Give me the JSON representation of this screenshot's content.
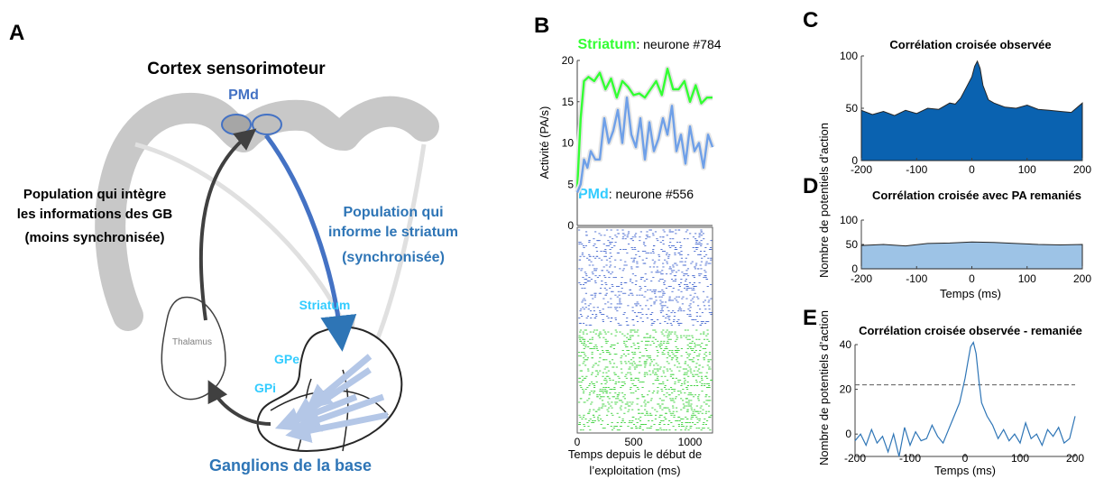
{
  "panels": {
    "A": {
      "letter": "A",
      "cortex_title": "Cortex sensorimoteur",
      "pmd_label": "PMd",
      "left_population": [
        "Population qui intègre",
        "les informations des GB",
        "(moins synchronisée)"
      ],
      "right_population": [
        "Population qui",
        "informe le striatum",
        "(synchronisée)"
      ],
      "striatum_label": "Striatum",
      "gpe_label": "GPe",
      "gpi_label": "GPi",
      "thalamus_label": "Thalamus",
      "basal_ganglia_label": "Ganglions de la base"
    },
    "B": {
      "letter": "B",
      "striatum_title": "Striatum",
      "striatum_neuron": ": neurone #784",
      "pmd_title": "PMd",
      "pmd_neuron": ": neurone #556",
      "ylabel": "Activité (PA/s)",
      "xlabel_line1": "Temps depuis le début de",
      "xlabel_line2": "l’exploitation (ms)"
    },
    "C": {
      "letter": "C",
      "title": "Corrélation croisée observée"
    },
    "D": {
      "letter": "D",
      "title": "Corrélation croisée avec PA remaniés",
      "xlabel": "Temps (ms)"
    },
    "E": {
      "letter": "E",
      "title": "Corrélation croisée observée - remaniée",
      "xlabel": "Temps (ms)"
    },
    "shared_ylabel_CD": "Nombre de potentiels d’action",
    "ylabel_E": "Nombre de potentiels d’action"
  },
  "colors": {
    "cortex": "#c8c8c8",
    "pmd_blue": "#4472c4",
    "arrow_dark": "#404040",
    "text_blue": "#2e75b6",
    "cyan": "#33ccff",
    "striatum_green": "#33ff33",
    "pmd_trace": "#6fa0e8",
    "ccg_observed": "#0a62b0",
    "ccg_shuffled": "#9dc3e6",
    "raster_blue": "#2f56c9",
    "raster_green": "#3bd13b"
  },
  "chart_data": [
    {
      "id": "B-rates",
      "type": "line",
      "ylabel": "Activité (PA/s)",
      "xlabel": "Temps depuis le début de l’exploitation (ms)",
      "xlim": [
        0,
        1200
      ],
      "ylim": [
        0,
        20
      ],
      "xticks": [
        0,
        500,
        1000
      ],
      "yticks": [
        0,
        5,
        10,
        15,
        20
      ],
      "series": [
        {
          "name": "Striatum",
          "x": [
            0,
            30,
            60,
            100,
            150,
            200,
            250,
            300,
            350,
            400,
            450,
            500,
            550,
            600,
            650,
            700,
            750,
            800,
            850,
            900,
            950,
            1000,
            1050,
            1100,
            1150,
            1200
          ],
          "values": [
            4.5,
            13,
            17.5,
            18,
            17.5,
            18.5,
            16.5,
            17.8,
            15.5,
            17.5,
            16.8,
            15.8,
            16,
            15.5,
            16.5,
            17.5,
            15.8,
            19,
            16.5,
            16.5,
            17.5,
            15,
            17,
            14.8,
            15.5,
            15.5
          ]
        },
        {
          "name": "PMd",
          "x": [
            0,
            30,
            60,
            90,
            120,
            160,
            200,
            240,
            280,
            320,
            360,
            400,
            440,
            480,
            520,
            560,
            600,
            640,
            680,
            720,
            760,
            800,
            840,
            880,
            920,
            960,
            1000,
            1040,
            1080,
            1120,
            1160,
            1200
          ],
          "values": [
            4,
            5,
            8,
            7,
            9,
            8,
            8,
            13,
            10,
            11.5,
            14,
            10,
            15.5,
            11,
            9.5,
            13,
            8,
            12.5,
            9,
            10.5,
            13,
            11,
            14.5,
            9,
            11,
            7.5,
            12,
            9,
            10,
            7,
            11,
            9.5
          ]
        }
      ]
    },
    {
      "id": "C-observed",
      "type": "area",
      "title": "Corrélation croisée observée",
      "xlim": [
        -200,
        200
      ],
      "ylim": [
        0,
        100
      ],
      "xticks": [
        -200,
        -100,
        0,
        100,
        200
      ],
      "yticks": [
        0,
        50,
        100
      ],
      "x": [
        -200,
        -180,
        -160,
        -140,
        -120,
        -100,
        -80,
        -60,
        -40,
        -30,
        -20,
        -10,
        0,
        5,
        10,
        15,
        20,
        30,
        40,
        60,
        80,
        100,
        120,
        140,
        160,
        180,
        200
      ],
      "values": [
        48,
        44,
        47,
        43,
        48,
        45,
        50,
        49,
        55,
        54,
        60,
        70,
        80,
        90,
        95,
        88,
        72,
        58,
        55,
        51,
        50,
        53,
        49,
        48,
        47,
        46,
        55
      ]
    },
    {
      "id": "D-shuffled",
      "type": "area",
      "title": "Corrélation croisée avec PA remaniés",
      "xlabel": "Temps (ms)",
      "xlim": [
        -200,
        200
      ],
      "ylim": [
        0,
        100
      ],
      "xticks": [
        -200,
        -100,
        0,
        100,
        200
      ],
      "yticks": [
        0,
        50,
        100
      ],
      "x": [
        -200,
        -160,
        -120,
        -80,
        -40,
        0,
        40,
        80,
        120,
        160,
        200
      ],
      "values": [
        48,
        50,
        47,
        52,
        53,
        55,
        54,
        52,
        50,
        49,
        50
      ]
    },
    {
      "id": "E-difference",
      "type": "line",
      "title": "Corrélation croisée observée - remaniée",
      "xlabel": "Temps (ms)",
      "xlim": [
        -200,
        200
      ],
      "ylim": [
        -10,
        40
      ],
      "xticks": [
        -200,
        -100,
        0,
        100,
        200
      ],
      "yticks": [
        0,
        20,
        40
      ],
      "threshold": 22,
      "x": [
        -200,
        -190,
        -180,
        -170,
        -160,
        -150,
        -140,
        -130,
        -120,
        -110,
        -100,
        -90,
        -80,
        -70,
        -60,
        -50,
        -40,
        -30,
        -20,
        -10,
        0,
        5,
        10,
        15,
        20,
        25,
        30,
        40,
        50,
        60,
        70,
        80,
        90,
        100,
        110,
        120,
        130,
        140,
        150,
        160,
        170,
        180,
        190,
        200
      ],
      "values": [
        -3,
        0,
        -5,
        2,
        -4,
        -1,
        -8,
        0,
        -10,
        3,
        -5,
        1,
        -3,
        -2,
        4,
        -1,
        -4,
        2,
        8,
        14,
        25,
        32,
        39,
        41,
        36,
        24,
        14,
        8,
        4,
        -2,
        2,
        -3,
        0,
        -4,
        5,
        -2,
        0,
        -5,
        2,
        -1,
        3,
        -4,
        -2,
        8
      ]
    }
  ]
}
